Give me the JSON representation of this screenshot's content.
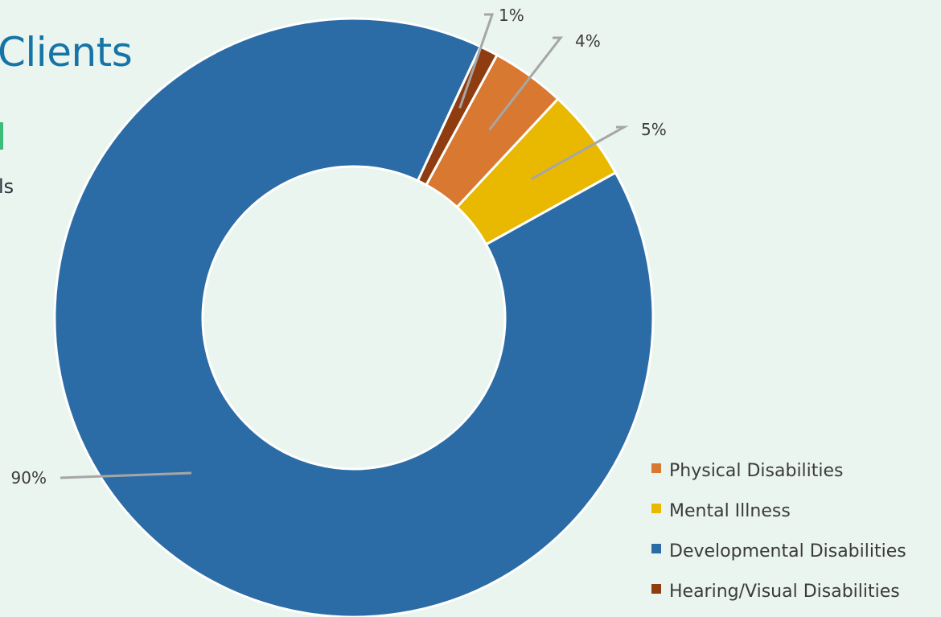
{
  "page": {
    "title": "Clients",
    "body_fragment": "ls"
  },
  "chart_data": {
    "type": "pie",
    "style": "donut",
    "title": "",
    "segments": [
      {
        "name": "Hearing/Visual Disabilities",
        "value": 1,
        "label": "1%",
        "color": "#8f3c10"
      },
      {
        "name": "Physical Disabilities",
        "value": 4,
        "label": "4%",
        "color": "#d97830"
      },
      {
        "name": "Mental Illness",
        "value": 5,
        "label": "5%",
        "color": "#e8b900"
      },
      {
        "name": "Developmental Disabilities",
        "value": 90,
        "label": "90%",
        "color": "#2c6ca6"
      }
    ],
    "legend": {
      "placement": "bottom-right",
      "order": [
        "Physical Disabilities",
        "Mental Illness",
        "Developmental Disabilities",
        "Hearing/Visual Disabilities"
      ]
    },
    "data_labels": "outside-with-leader-lines"
  }
}
